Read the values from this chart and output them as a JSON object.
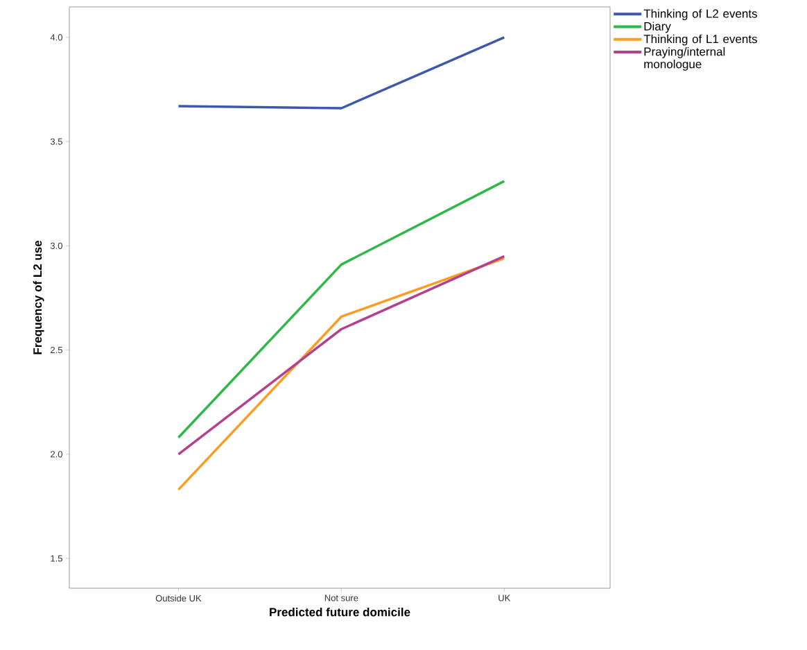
{
  "chart_data": {
    "type": "line",
    "xlabel": "Predicted future domicile",
    "ylabel": "Frequency of L2 use",
    "categories": [
      "Outside UK",
      "Not sure",
      "UK"
    ],
    "series": [
      {
        "name": "Thinking of L2 events",
        "color": "#3e58ac",
        "values": [
          3.67,
          3.66,
          4.0
        ]
      },
      {
        "name": "Diary",
        "color": "#2eb848",
        "values": [
          2.08,
          2.91,
          3.31
        ]
      },
      {
        "name": "Thinking of L1 events",
        "color": "#fb9d23",
        "values": [
          1.83,
          2.66,
          2.94
        ]
      },
      {
        "name": "Praying/internal monologue",
        "color": "#b3428e",
        "values": [
          2.0,
          2.6,
          2.95
        ]
      }
    ],
    "ylim": [
      1.357,
      4.146
    ],
    "yticks": [
      {
        "value": 1.5,
        "label": "1.5"
      },
      {
        "value": 2.0,
        "label": "2.0"
      },
      {
        "value": 2.5,
        "label": "2.5"
      },
      {
        "value": 3.0,
        "label": "3.0"
      },
      {
        "value": 3.5,
        "label": "3.5"
      },
      {
        "value": 4.0,
        "label": "4.0"
      }
    ],
    "grid": false,
    "legend": "right",
    "marker": "none",
    "line_style": "solid"
  }
}
